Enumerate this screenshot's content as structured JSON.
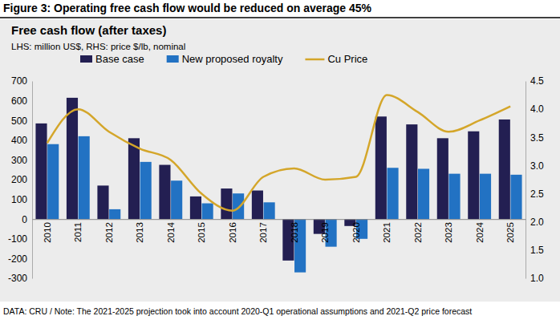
{
  "chart_data": {
    "type": "bar",
    "title": "Figure 3: Operating free cash flow would be reduced on average 45%",
    "subtitle": "Free cash flow (after taxes)",
    "y_label": "LHS: million US$, RHS: price $/lb, nominal",
    "note": "DATA: CRU / Note: The 2021-2025 projection took into account 2020-Q1 operational assumptions and 2021-Q2 price forecast",
    "categories": [
      "2010",
      "2011",
      "2012",
      "2013",
      "2014",
      "2015",
      "2016",
      "2017",
      "2018",
      "2019",
      "2020",
      "2021",
      "2022",
      "2023",
      "2024",
      "2025"
    ],
    "series": [
      {
        "name": "Base case",
        "color": "#231f52",
        "values": [
          485,
          615,
          170,
          410,
          275,
          115,
          155,
          145,
          -210,
          -75,
          -35,
          520,
          480,
          410,
          445,
          505
        ]
      },
      {
        "name": "New proposed royalty",
        "color": "#2272c3",
        "values": [
          380,
          420,
          50,
          290,
          195,
          80,
          130,
          85,
          -270,
          -140,
          -100,
          260,
          255,
          230,
          230,
          225
        ]
      },
      {
        "name": "Cu Price",
        "type": "line",
        "axis": "y2",
        "color": "#d4a62a",
        "values": [
          3.4,
          4.0,
          3.6,
          3.3,
          3.1,
          2.5,
          2.2,
          2.8,
          2.95,
          2.75,
          2.8,
          4.25,
          3.95,
          3.6,
          3.8,
          4.05
        ]
      }
    ],
    "ylim": [
      -300,
      700
    ],
    "yticks": [
      -300,
      -200,
      -100,
      0,
      100,
      200,
      300,
      400,
      500,
      600,
      700
    ],
    "y2lim": [
      1,
      4.5
    ],
    "y2ticks": [
      {
        "value": 1,
        "label": "1.0"
      },
      1.5,
      {
        "value": 2,
        "label": "2.0"
      },
      2.5,
      {
        "value": 3,
        "label": "3.0"
      },
      3.5,
      {
        "value": 4,
        "label": "4.0"
      },
      4.5
    ],
    "grid": false
  }
}
